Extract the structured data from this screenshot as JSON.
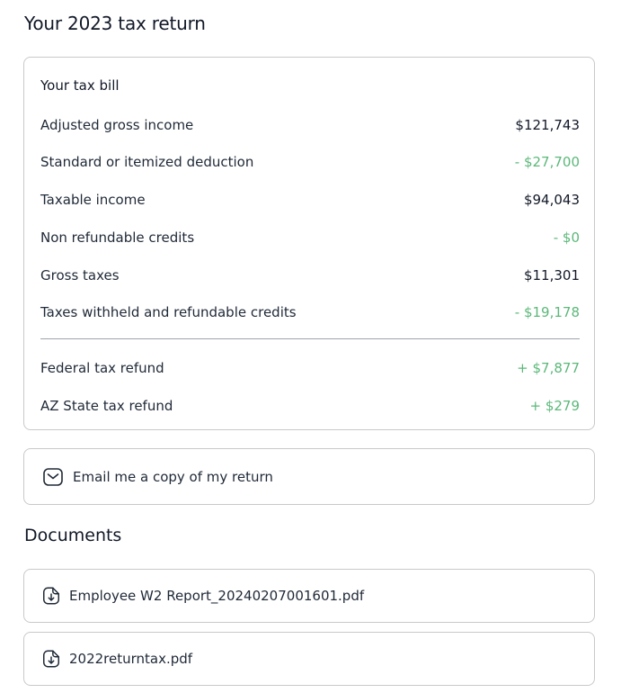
{
  "page": {
    "title": "Your 2023 tax return"
  },
  "tax_bill": {
    "heading": "Your tax bill",
    "rows": [
      {
        "label": "Adjusted gross income",
        "value": "$121,743"
      },
      {
        "label": "Standard or itemized deduction",
        "value": "- $27,700"
      },
      {
        "label": "Taxable income",
        "value": "$94,043"
      },
      {
        "label": "Non refundable credits",
        "value": "- $0"
      },
      {
        "label": "Gross taxes",
        "value": "$11,301"
      },
      {
        "label": "Taxes withheld and refundable credits",
        "value": "- $19,178"
      }
    ],
    "refunds": [
      {
        "label": "Federal tax refund",
        "value": "+ $7,877"
      },
      {
        "label": "AZ State tax refund",
        "value": "+ $279"
      }
    ]
  },
  "email": {
    "label": "Email me a copy of my return",
    "icon": "envelope-icon"
  },
  "documents": {
    "title": "Documents",
    "items": [
      {
        "name": "Employee W2 Report_20240207001601.pdf",
        "icon": "document-download-icon"
      },
      {
        "name": "2022returntax.pdf",
        "icon": "document-download-icon"
      }
    ]
  },
  "colors": {
    "positive_adjustment": "#5cb87a",
    "border": "#c9c9c9",
    "text": "#111827"
  }
}
